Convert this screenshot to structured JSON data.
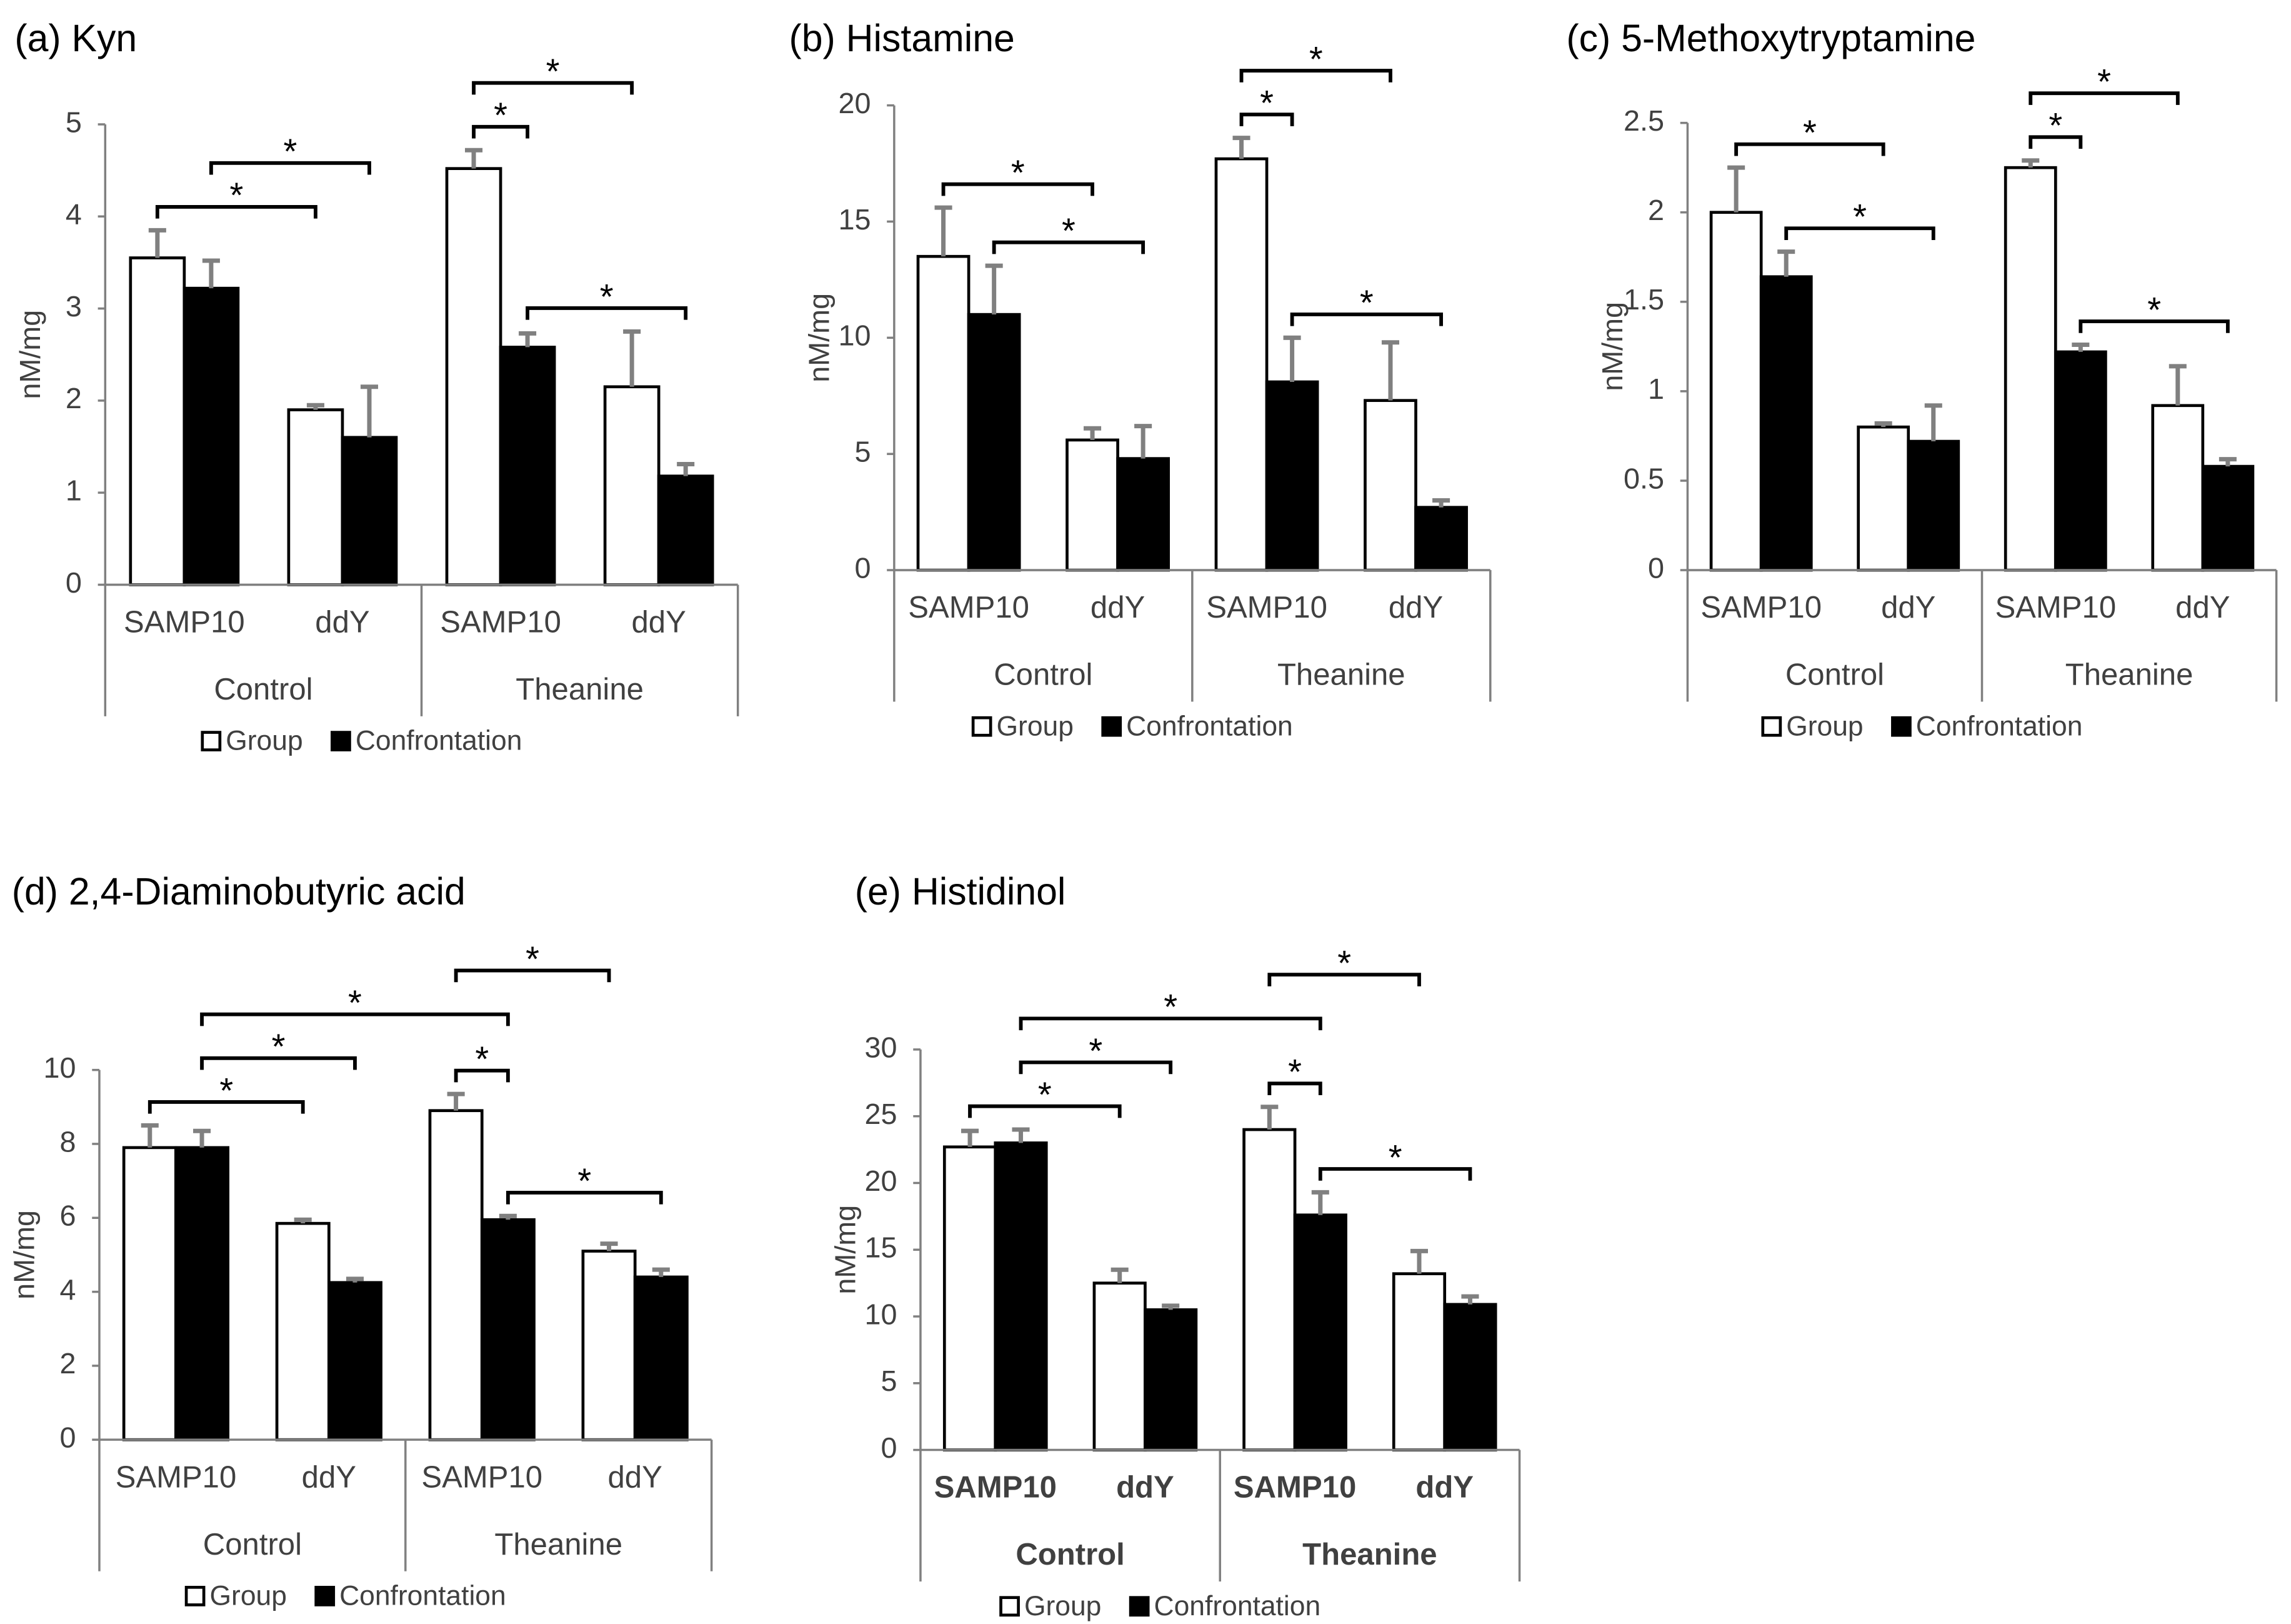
{
  "chart_data": [
    {
      "type": "bar",
      "title": "(a) Kyn",
      "y_label": "nM/mg",
      "categories": [
        "SAMP10",
        "ddY",
        "SAMP10",
        "ddY"
      ],
      "groups": [
        "Control",
        "Theanine"
      ],
      "series": [
        {
          "name": "Group",
          "color": "#ffffff",
          "values": [
            3.55,
            1.9,
            4.52,
            2.15
          ],
          "errors": [
            0.3,
            0.05,
            0.2,
            0.6
          ]
        },
        {
          "name": "Confrontation",
          "color": "#000000",
          "values": [
            3.22,
            1.6,
            2.58,
            1.18
          ],
          "errors": [
            0.3,
            0.55,
            0.15,
            0.13
          ]
        }
      ],
      "ylim": [
        0,
        5
      ],
      "yticks": [
        0,
        1,
        2,
        3,
        4,
        5
      ],
      "significance": [
        {
          "label": "*",
          "from": [
            0,
            0
          ],
          "to": [
            0,
            1
          ]
        },
        {
          "label": "*",
          "from": [
            1,
            0
          ],
          "to": [
            1,
            1
          ]
        },
        {
          "label": "*",
          "from": [
            0,
            2
          ],
          "to": [
            1,
            2
          ]
        },
        {
          "label": "*",
          "from": [
            0,
            2
          ],
          "to": [
            0,
            3
          ]
        },
        {
          "label": "*",
          "from": [
            1,
            2
          ],
          "to": [
            1,
            3
          ]
        }
      ]
    },
    {
      "type": "bar",
      "title": "(b) Histamine",
      "y_label": "nM/mg",
      "categories": [
        "SAMP10",
        "ddY",
        "SAMP10",
        "ddY"
      ],
      "groups": [
        "Control",
        "Theanine"
      ],
      "series": [
        {
          "name": "Group",
          "color": "#ffffff",
          "values": [
            13.5,
            5.6,
            17.7,
            7.3
          ],
          "errors": [
            2.1,
            0.5,
            0.9,
            2.5
          ]
        },
        {
          "name": "Confrontation",
          "color": "#000000",
          "values": [
            11,
            4.8,
            8.1,
            2.7
          ],
          "errors": [
            2.1,
            1.4,
            1.9,
            0.3
          ]
        }
      ],
      "ylim": [
        0,
        20
      ],
      "yticks": [
        0,
        5,
        10,
        15,
        20
      ],
      "significance": [
        {
          "label": "*",
          "from": [
            0,
            0
          ],
          "to": [
            0,
            1
          ]
        },
        {
          "label": "*",
          "from": [
            1,
            0
          ],
          "to": [
            1,
            1
          ]
        },
        {
          "label": "*",
          "from": [
            0,
            2
          ],
          "to": [
            1,
            2
          ]
        },
        {
          "label": "*",
          "from": [
            0,
            2
          ],
          "to": [
            0,
            3
          ]
        },
        {
          "label": "*",
          "from": [
            1,
            2
          ],
          "to": [
            1,
            3
          ]
        }
      ]
    },
    {
      "type": "bar",
      "title": "(c) 5-Methoxytryptamine",
      "y_label": "nM/mg",
      "categories": [
        "SAMP10",
        "ddY",
        "SAMP10",
        "ddY"
      ],
      "groups": [
        "Control",
        "Theanine"
      ],
      "series": [
        {
          "name": "Group",
          "color": "#ffffff",
          "values": [
            2.0,
            0.8,
            2.25,
            0.92
          ],
          "errors": [
            0.25,
            0.02,
            0.04,
            0.22
          ]
        },
        {
          "name": "Confrontation",
          "color": "#000000",
          "values": [
            1.64,
            0.72,
            1.22,
            0.58
          ],
          "errors": [
            0.14,
            0.2,
            0.04,
            0.04
          ]
        }
      ],
      "ylim": [
        0,
        2.5
      ],
      "yticks": [
        0,
        0.5,
        1,
        1.5,
        2,
        2.5
      ],
      "significance": [
        {
          "label": "*",
          "from": [
            0,
            0
          ],
          "to": [
            0,
            1
          ]
        },
        {
          "label": "*",
          "from": [
            1,
            0
          ],
          "to": [
            1,
            1
          ]
        },
        {
          "label": "*",
          "from": [
            0,
            2
          ],
          "to": [
            1,
            2
          ]
        },
        {
          "label": "*",
          "from": [
            0,
            2
          ],
          "to": [
            0,
            3
          ]
        },
        {
          "label": "*",
          "from": [
            1,
            2
          ],
          "to": [
            1,
            3
          ]
        }
      ]
    },
    {
      "type": "bar",
      "title": "(d) 2,4-Diaminobutyric acid",
      "y_label": "nM/mg",
      "categories": [
        "SAMP10",
        "ddY",
        "SAMP10",
        "ddY"
      ],
      "groups": [
        "Control",
        "Theanine"
      ],
      "series": [
        {
          "name": "Group",
          "color": "#ffffff",
          "values": [
            7.9,
            5.85,
            8.9,
            5.1
          ],
          "errors": [
            0.6,
            0.1,
            0.45,
            0.2
          ]
        },
        {
          "name": "Confrontation",
          "color": "#000000",
          "values": [
            7.9,
            4.25,
            5.95,
            4.4
          ],
          "errors": [
            0.45,
            0.1,
            0.1,
            0.2
          ]
        }
      ],
      "ylim": [
        0,
        10
      ],
      "yticks": [
        0,
        2,
        4,
        6,
        8,
        10
      ],
      "significance": [
        {
          "label": "*",
          "from": [
            0,
            0
          ],
          "to": [
            0,
            1
          ]
        },
        {
          "label": "*",
          "from": [
            1,
            0
          ],
          "to": [
            1,
            1
          ]
        },
        {
          "label": "*",
          "from": [
            0,
            2
          ],
          "to": [
            1,
            2
          ]
        },
        {
          "label": "*",
          "from": [
            1,
            2
          ],
          "to": [
            1,
            3
          ]
        },
        {
          "label": "*",
          "from": [
            1,
            0
          ],
          "to": [
            1,
            2
          ]
        },
        {
          "label": "*",
          "from": [
            0,
            2
          ],
          "to": [
            0,
            3
          ]
        }
      ]
    },
    {
      "type": "bar",
      "title": "(e) Histidinol",
      "y_label": "nM/mg",
      "bold_labels": true,
      "categories": [
        "SAMP10",
        "ddY",
        "SAMP10",
        "ddY"
      ],
      "groups": [
        "Control",
        "Theanine"
      ],
      "series": [
        {
          "name": "Group",
          "color": "#ffffff",
          "values": [
            22.7,
            12.5,
            24,
            13.2
          ],
          "errors": [
            1.2,
            1,
            1.7,
            1.7
          ]
        },
        {
          "name": "Confrontation",
          "color": "#000000",
          "values": [
            23,
            10.5,
            17.6,
            10.9
          ],
          "errors": [
            1,
            0.3,
            1.7,
            0.6
          ]
        }
      ],
      "ylim": [
        0,
        30
      ],
      "yticks": [
        0,
        5,
        10,
        15,
        20,
        25,
        30
      ],
      "significance": [
        {
          "label": "*",
          "from": [
            0,
            0
          ],
          "to": [
            0,
            1
          ]
        },
        {
          "label": "*",
          "from": [
            1,
            0
          ],
          "to": [
            1,
            1
          ]
        },
        {
          "label": "*",
          "from": [
            0,
            2
          ],
          "to": [
            1,
            2
          ]
        },
        {
          "label": "*",
          "from": [
            1,
            2
          ],
          "to": [
            1,
            3
          ]
        },
        {
          "label": "*",
          "from": [
            1,
            0
          ],
          "to": [
            1,
            2
          ]
        },
        {
          "label": "*",
          "from": [
            0,
            2
          ],
          "to": [
            0,
            3
          ]
        }
      ]
    }
  ]
}
